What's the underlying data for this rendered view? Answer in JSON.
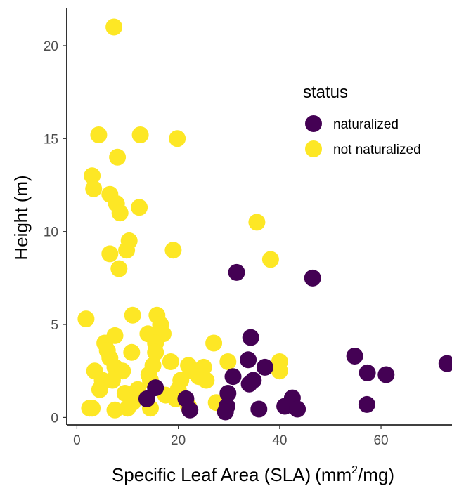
{
  "chart_data": {
    "type": "scatter",
    "title": "",
    "xlabel": "Specific Leaf Area (SLA)",
    "xlabel_unit_base": "(mm",
    "xlabel_unit_sup": "2",
    "xlabel_unit_tail": "/mg)",
    "ylabel": "Height (m)",
    "xlim": [
      -2,
      74
    ],
    "ylim": [
      -0.4,
      22
    ],
    "xticks": [
      0,
      20,
      40,
      60
    ],
    "yticks": [
      0,
      5,
      10,
      15,
      20
    ],
    "grid": false,
    "legend": {
      "title": "status",
      "placement": "right"
    },
    "series": [
      {
        "name": "naturalized",
        "color": "#440154",
        "points": [
          [
            31.5,
            7.8
          ],
          [
            46.5,
            7.5
          ],
          [
            34.3,
            4.3
          ],
          [
            54.8,
            3.3
          ],
          [
            73.0,
            2.9
          ],
          [
            33.8,
            3.1
          ],
          [
            37.1,
            2.7
          ],
          [
            30.8,
            2.2
          ],
          [
            57.3,
            2.4
          ],
          [
            61.0,
            2.3
          ],
          [
            34.8,
            2.0
          ],
          [
            34.0,
            1.8
          ],
          [
            15.5,
            1.6
          ],
          [
            13.8,
            1.0
          ],
          [
            21.5,
            1.0
          ],
          [
            22.3,
            0.4
          ],
          [
            29.8,
            1.3
          ],
          [
            29.6,
            0.6
          ],
          [
            29.3,
            0.3
          ],
          [
            42.5,
            1.05
          ],
          [
            41.0,
            0.6
          ],
          [
            43.5,
            0.45
          ],
          [
            35.9,
            0.45
          ],
          [
            57.2,
            0.7
          ]
        ]
      },
      {
        "name": "not naturalized",
        "color": "#FDE725",
        "points": [
          [
            7.3,
            21.0
          ],
          [
            4.3,
            15.2
          ],
          [
            12.5,
            15.2
          ],
          [
            19.8,
            15.0
          ],
          [
            8.0,
            14.0
          ],
          [
            3.0,
            13.0
          ],
          [
            3.3,
            12.3
          ],
          [
            6.5,
            12.0
          ],
          [
            7.8,
            11.5
          ],
          [
            8.5,
            11.0
          ],
          [
            12.3,
            11.3
          ],
          [
            35.5,
            10.5
          ],
          [
            10.3,
            9.5
          ],
          [
            9.8,
            9.0
          ],
          [
            6.5,
            8.8
          ],
          [
            19.0,
            9.0
          ],
          [
            38.2,
            8.5
          ],
          [
            8.3,
            8.0
          ],
          [
            1.8,
            5.3
          ],
          [
            11.0,
            5.5
          ],
          [
            15.8,
            5.5
          ],
          [
            16.5,
            5.0
          ],
          [
            16.0,
            4.5
          ],
          [
            14.0,
            4.5
          ],
          [
            7.5,
            4.4
          ],
          [
            17.0,
            4.5
          ],
          [
            5.5,
            4.0
          ],
          [
            15.5,
            4.0
          ],
          [
            27.0,
            4.0
          ],
          [
            6.0,
            3.6
          ],
          [
            10.8,
            3.5
          ],
          [
            15.5,
            3.5
          ],
          [
            6.5,
            3.2
          ],
          [
            18.5,
            3.0
          ],
          [
            15.0,
            2.8
          ],
          [
            22.0,
            2.8
          ],
          [
            25.0,
            2.7
          ],
          [
            29.8,
            3.0
          ],
          [
            40.0,
            3.0
          ],
          [
            3.5,
            2.5
          ],
          [
            7.5,
            2.7
          ],
          [
            9.0,
            2.5
          ],
          [
            14.2,
            2.3
          ],
          [
            22.5,
            2.5
          ],
          [
            24.0,
            2.2
          ],
          [
            40.0,
            2.5
          ],
          [
            5.0,
            2.0
          ],
          [
            7.0,
            2.0
          ],
          [
            14.5,
            2.0
          ],
          [
            20.5,
            2.0
          ],
          [
            25.5,
            2.0
          ],
          [
            4.5,
            1.5
          ],
          [
            9.5,
            1.3
          ],
          [
            12.0,
            1.5
          ],
          [
            20.0,
            1.5
          ],
          [
            17.5,
            1.2
          ],
          [
            11.5,
            1.0
          ],
          [
            27.5,
            0.8
          ],
          [
            3.0,
            0.5
          ],
          [
            7.5,
            0.4
          ],
          [
            10.0,
            0.5
          ],
          [
            14.5,
            0.5
          ],
          [
            22.0,
            0.6
          ],
          [
            2.5,
            0.5
          ],
          [
            11.0,
            0.8
          ],
          [
            19.5,
            1.0
          ]
        ]
      }
    ]
  }
}
